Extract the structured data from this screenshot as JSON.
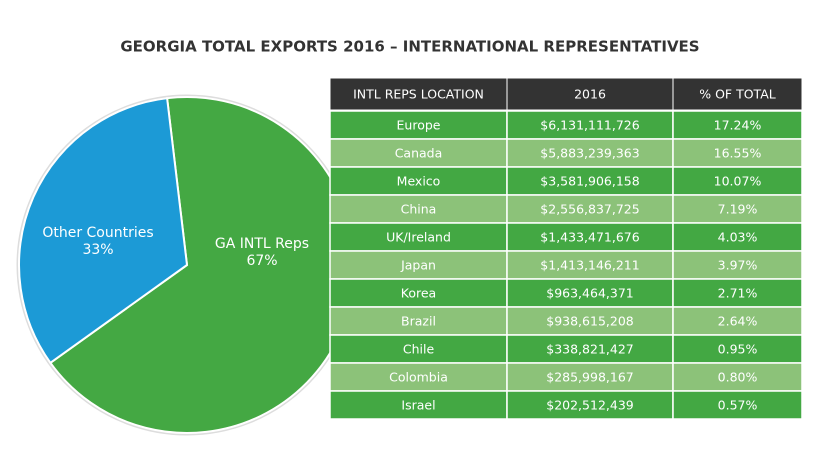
{
  "chart_data": {
    "type": "pie",
    "title": "GEORGIA TOTAL EXPORTS 2016 – INTERNATIONAL REPRESENTATIVES",
    "categories": [
      "GA INTL Reps",
      "Other Countries"
    ],
    "values": [
      67,
      33
    ],
    "value_labels": [
      "67%",
      "33%"
    ],
    "colors": [
      "#44a843",
      "#1c9ad6"
    ]
  },
  "table": {
    "header": [
      "INTL REPS LOCATION",
      "2016",
      "% OF TOTAL"
    ],
    "rows": [
      [
        "Europe",
        "$6,131,111,726",
        "17.24%"
      ],
      [
        "Canada",
        "$5,883,239,363",
        "16.55%"
      ],
      [
        "Mexico",
        "$3,581,906,158",
        "10.07%"
      ],
      [
        "China",
        "$2,556,837,725",
        "7.19%"
      ],
      [
        "UK/Ireland",
        "$1,433,471,676",
        "4.03%"
      ],
      [
        "Japan",
        "$1,413,146,211",
        "3.97%"
      ],
      [
        "Korea",
        "$963,464,371",
        "2.71%"
      ],
      [
        "Brazil",
        "$938,615,208",
        "2.64%"
      ],
      [
        "Chile",
        "$338,821,427",
        "0.95%"
      ],
      [
        "Colombia",
        "$285,998,167",
        "0.80%"
      ],
      [
        "Israel",
        "$202,512,439",
        "0.57%"
      ]
    ]
  }
}
